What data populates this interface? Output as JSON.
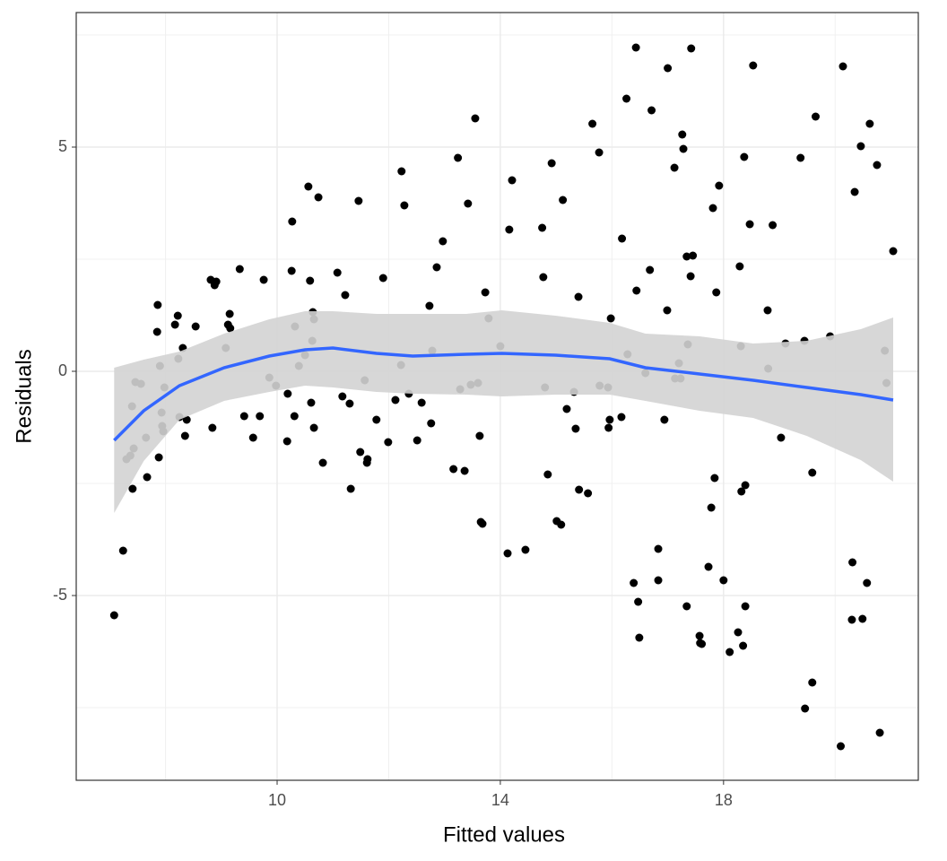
{
  "chart_data": {
    "type": "scatter",
    "x_label": "Fitted values",
    "y_label": "Residuals",
    "xlim": [
      6.4,
      21.49
    ],
    "ylim": [
      -9.12,
      8.0
    ],
    "xticks": [
      10,
      14,
      18
    ],
    "yticks": [
      -5,
      0,
      5
    ],
    "x_minor_grid": [
      8,
      12,
      16,
      20
    ],
    "y_minor_grid": [
      -7.5,
      -2.5,
      2.5,
      7.5
    ],
    "grid": true,
    "color": "#000000",
    "x": [
      7.08,
      7.24,
      7.3,
      7.37,
      7.43,
      7.41,
      7.4,
      7.46,
      7.56,
      7.65,
      7.67,
      7.85,
      7.86,
      7.88,
      7.9,
      7.93,
      7.94,
      7.96,
      7.98,
      8.17,
      8.22,
      8.23,
      8.25,
      8.31,
      8.35,
      8.38,
      8.54,
      8.81,
      8.84,
      8.88,
      8.91,
      9.08,
      9.12,
      9.15,
      9.16,
      9.33,
      9.41,
      9.57,
      9.69,
      9.76,
      9.86,
      9.98,
      10.18,
      10.19,
      10.26,
      10.27,
      10.31,
      10.32,
      10.39,
      10.5,
      10.56,
      10.59,
      10.61,
      10.63,
      10.64,
      10.66,
      10.66,
      10.74,
      10.82,
      11.08,
      11.17,
      11.22,
      11.3,
      11.32,
      11.46,
      11.49,
      11.57,
      11.61,
      11.62,
      11.78,
      11.9,
      11.99,
      12.12,
      12.22,
      12.23,
      12.28,
      12.36,
      12.51,
      12.59,
      12.73,
      12.76,
      12.78,
      12.86,
      12.97,
      13.16,
      13.24,
      13.28,
      13.36,
      13.42,
      13.47,
      13.55,
      13.6,
      13.63,
      13.65,
      13.68,
      13.73,
      13.79,
      14.0,
      14.13,
      14.16,
      14.21,
      14.45,
      14.75,
      14.77,
      14.8,
      14.85,
      14.92,
      15.01,
      15.09,
      15.12,
      15.19,
      15.32,
      15.35,
      15.4,
      15.41,
      15.57,
      15.65,
      15.77,
      15.78,
      15.93,
      15.94,
      15.96,
      15.98,
      16.17,
      16.18,
      16.26,
      16.28,
      16.39,
      16.43,
      16.44,
      16.47,
      16.49,
      16.6,
      16.68,
      16.71,
      16.83,
      16.83,
      16.94,
      16.99,
      17.0,
      17.12,
      17.13,
      17.2,
      17.23,
      17.26,
      17.28,
      17.34,
      17.34,
      17.36,
      17.41,
      17.42,
      17.45,
      17.57,
      17.58,
      17.61,
      17.73,
      17.78,
      17.81,
      17.84,
      17.87,
      17.92,
      18.0,
      18.11,
      18.26,
      18.29,
      18.31,
      18.32,
      18.35,
      18.37,
      18.39,
      18.39,
      18.47,
      18.53,
      18.79,
      18.8,
      18.88,
      19.03,
      19.11,
      19.38,
      19.45,
      19.46,
      19.59,
      19.59,
      19.65,
      19.91,
      20.1,
      20.14,
      20.3,
      20.31,
      20.35,
      20.46,
      20.49,
      20.57,
      20.62,
      20.75,
      20.8,
      20.89,
      20.92,
      21.04
    ],
    "values": [
      -5.44,
      -4.0,
      -1.96,
      -1.88,
      -1.72,
      -2.62,
      -0.78,
      -0.24,
      -0.28,
      -1.48,
      -2.36,
      0.88,
      1.48,
      -1.92,
      0.12,
      -0.92,
      -1.22,
      -1.34,
      -0.36,
      1.04,
      1.24,
      0.28,
      -1.02,
      0.52,
      -1.44,
      -1.08,
      1.0,
      2.04,
      -1.26,
      1.92,
      2.0,
      0.52,
      1.04,
      1.28,
      0.96,
      2.28,
      -1.0,
      -1.48,
      -1.0,
      2.04,
      -0.14,
      -0.32,
      -1.56,
      -0.5,
      2.24,
      3.34,
      -1.0,
      1.0,
      0.12,
      0.36,
      4.12,
      2.02,
      -0.7,
      0.68,
      1.32,
      1.16,
      -1.26,
      3.88,
      -2.04,
      2.2,
      -0.56,
      1.7,
      -0.72,
      -2.62,
      3.8,
      -1.8,
      -0.2,
      -2.04,
      -1.96,
      -1.08,
      2.08,
      -1.58,
      -0.64,
      0.14,
      4.46,
      3.7,
      -0.5,
      -1.54,
      -0.7,
      1.46,
      -1.16,
      0.46,
      2.32,
      2.9,
      -2.18,
      4.76,
      -0.4,
      -2.22,
      3.74,
      -0.3,
      5.64,
      -0.26,
      -1.44,
      -3.36,
      -3.4,
      1.76,
      1.18,
      0.56,
      -4.06,
      3.16,
      4.26,
      -3.98,
      3.2,
      2.1,
      -0.36,
      -2.3,
      4.64,
      -3.34,
      -3.42,
      3.82,
      -0.84,
      -0.46,
      -1.28,
      1.66,
      -2.64,
      -2.72,
      5.52,
      4.88,
      -0.32,
      -0.36,
      -1.26,
      -1.08,
      1.18,
      -1.02,
      2.96,
      6.08,
      0.38,
      -4.72,
      7.22,
      1.8,
      -5.14,
      -5.94,
      -0.04,
      2.26,
      5.82,
      -3.96,
      -4.66,
      -1.08,
      1.36,
      6.76,
      4.54,
      -0.16,
      0.18,
      -0.16,
      5.28,
      4.96,
      -5.24,
      2.56,
      0.6,
      2.12,
      7.2,
      2.58,
      -5.9,
      -6.06,
      -6.08,
      -4.36,
      -3.04,
      3.64,
      -2.38,
      1.76,
      4.14,
      -4.66,
      -6.26,
      -5.82,
      2.34,
      0.56,
      -2.68,
      -6.12,
      4.78,
      -2.54,
      -5.24,
      3.28,
      6.82,
      1.36,
      0.06,
      3.26,
      -1.48,
      0.62,
      4.76,
      0.68,
      -7.52,
      -6.94,
      -2.26,
      5.68,
      0.78,
      -8.36,
      6.8,
      -5.54,
      -4.26,
      4.0,
      5.02,
      -5.52,
      -4.72,
      5.52,
      4.6,
      -8.06,
      0.46,
      -0.26,
      2.68
    ],
    "smooth": {
      "color": "#3366ff",
      "band_color": "#d3d3d3",
      "x": [
        7.08,
        7.61,
        8.25,
        9.05,
        9.86,
        10.5,
        11.0,
        11.78,
        12.43,
        13.39,
        14.03,
        14.99,
        15.96,
        16.6,
        17.57,
        18.53,
        19.49,
        20.46,
        21.04
      ],
      "values": [
        -1.54,
        -0.88,
        -0.32,
        0.08,
        0.34,
        0.48,
        0.52,
        0.4,
        0.34,
        0.38,
        0.4,
        0.36,
        0.28,
        0.08,
        -0.06,
        -0.2,
        -0.36,
        -0.52,
        -0.64
      ],
      "lower": [
        -3.16,
        -2.0,
        -1.08,
        -0.66,
        -0.46,
        -0.32,
        -0.36,
        -0.46,
        -0.5,
        -0.52,
        -0.56,
        -0.52,
        -0.52,
        -0.66,
        -0.88,
        -1.04,
        -1.44,
        -1.98,
        -2.46
      ],
      "upper": [
        0.08,
        0.26,
        0.44,
        0.84,
        1.16,
        1.34,
        1.34,
        1.28,
        1.28,
        1.28,
        1.36,
        1.24,
        1.08,
        0.84,
        0.78,
        0.62,
        0.68,
        0.94,
        1.2
      ]
    }
  }
}
